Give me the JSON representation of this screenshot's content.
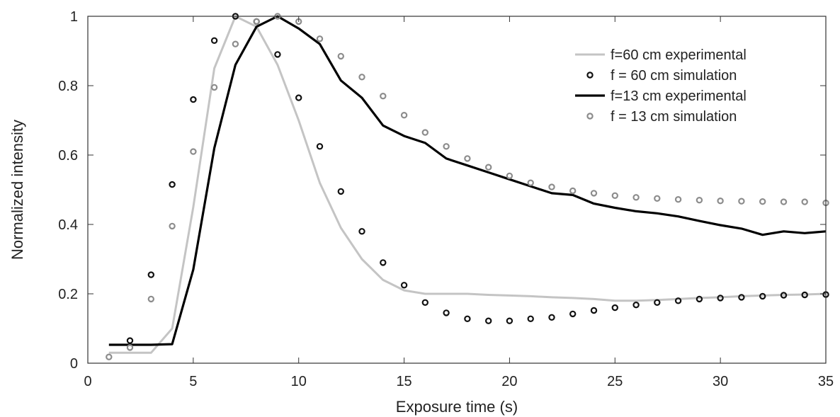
{
  "chart_data": {
    "type": "line",
    "xlabel": "Exposure time (s)",
    "ylabel": "Normalized intensity",
    "xlim": [
      0,
      35
    ],
    "ylim": [
      0,
      1
    ],
    "xticks": [
      0,
      5,
      10,
      15,
      20,
      25,
      30,
      35
    ],
    "yticks": [
      0,
      0.2,
      0.4,
      0.6,
      0.8,
      1
    ],
    "ytick_labels": [
      "0",
      "0.2",
      "0.4",
      "0.6",
      "0.8",
      "1"
    ],
    "grid": false,
    "legend_position": "top-right",
    "series": [
      {
        "name": "f=60 cm experimental",
        "style": "line",
        "color": "#c4c4c4",
        "x": [
          1,
          2,
          3,
          4,
          5,
          6,
          7,
          8,
          9,
          10,
          11,
          12,
          13,
          14,
          15,
          16,
          17,
          18,
          19,
          20,
          21,
          22,
          23,
          24,
          25,
          26,
          27,
          28,
          29,
          30,
          31,
          32,
          33,
          34,
          35
        ],
        "y": [
          0.03,
          0.03,
          0.03,
          0.1,
          0.45,
          0.85,
          1.0,
          0.97,
          0.86,
          0.7,
          0.52,
          0.39,
          0.3,
          0.24,
          0.21,
          0.2,
          0.2,
          0.2,
          0.197,
          0.195,
          0.193,
          0.19,
          0.188,
          0.185,
          0.18,
          0.18,
          0.182,
          0.185,
          0.188,
          0.19,
          0.193,
          0.195,
          0.197,
          0.198,
          0.2
        ]
      },
      {
        "name": "f = 60 cm simulation",
        "style": "markers",
        "color": "#111111",
        "x": [
          2,
          3,
          4,
          5,
          6,
          7,
          8,
          9,
          10,
          11,
          12,
          13,
          14,
          15,
          16,
          17,
          18,
          19,
          20,
          21,
          22,
          23,
          24,
          25,
          26,
          27,
          28,
          29,
          30,
          31,
          32,
          33,
          34,
          35
        ],
        "y": [
          0.065,
          0.255,
          0.515,
          0.76,
          0.93,
          1.0,
          0.985,
          0.89,
          0.765,
          0.625,
          0.495,
          0.38,
          0.29,
          0.225,
          0.175,
          0.145,
          0.128,
          0.122,
          0.122,
          0.128,
          0.132,
          0.142,
          0.152,
          0.16,
          0.168,
          0.175,
          0.18,
          0.185,
          0.188,
          0.19,
          0.193,
          0.196,
          0.197,
          0.198
        ]
      },
      {
        "name": "f=13 cm experimental",
        "style": "line",
        "color": "#000000",
        "x": [
          1,
          2,
          3,
          4,
          5,
          6,
          7,
          8,
          9,
          10,
          11,
          12,
          13,
          14,
          15,
          16,
          17,
          18,
          19,
          20,
          21,
          22,
          23,
          24,
          25,
          26,
          27,
          28,
          29,
          30,
          31,
          32,
          33,
          34,
          35
        ],
        "y": [
          0.053,
          0.053,
          0.053,
          0.055,
          0.27,
          0.62,
          0.86,
          0.97,
          1.0,
          0.965,
          0.92,
          0.815,
          0.765,
          0.685,
          0.655,
          0.635,
          0.59,
          0.57,
          0.55,
          0.53,
          0.51,
          0.49,
          0.485,
          0.46,
          0.448,
          0.438,
          0.432,
          0.423,
          0.41,
          0.398,
          0.388,
          0.37,
          0.38,
          0.375,
          0.38
        ]
      },
      {
        "name": "f = 13 cm simulation",
        "style": "markers",
        "color": "#8c8c8c",
        "x": [
          1,
          2,
          3,
          4,
          5,
          6,
          7,
          8,
          9,
          10,
          11,
          12,
          13,
          14,
          15,
          16,
          17,
          18,
          19,
          20,
          21,
          22,
          23,
          24,
          25,
          26,
          27,
          28,
          29,
          30,
          31,
          32,
          33,
          34,
          35
        ],
        "y": [
          0.018,
          0.045,
          0.185,
          0.395,
          0.61,
          0.795,
          0.92,
          0.985,
          1.0,
          0.985,
          0.935,
          0.885,
          0.825,
          0.77,
          0.715,
          0.665,
          0.625,
          0.59,
          0.565,
          0.54,
          0.52,
          0.508,
          0.497,
          0.49,
          0.483,
          0.478,
          0.475,
          0.472,
          0.47,
          0.468,
          0.467,
          0.466,
          0.465,
          0.465,
          0.462
        ]
      }
    ]
  }
}
